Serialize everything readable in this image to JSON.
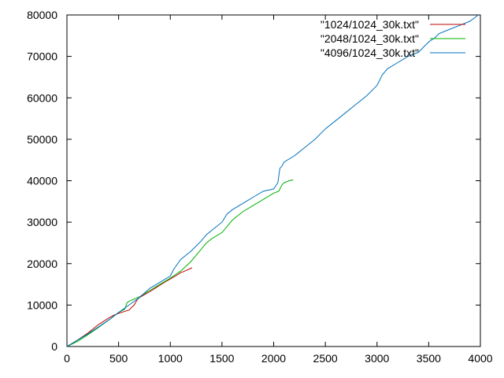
{
  "chart_data": {
    "type": "line",
    "title": "",
    "xlabel": "",
    "ylabel": "",
    "xlim": [
      0,
      4000
    ],
    "ylim": [
      0,
      80000
    ],
    "xticks": [
      0,
      500,
      1000,
      1500,
      2000,
      2500,
      3000,
      3500,
      4000
    ],
    "yticks": [
      0,
      10000,
      20000,
      30000,
      40000,
      50000,
      60000,
      70000,
      80000
    ],
    "grid": false,
    "legend_position": "top-right",
    "series": [
      {
        "name": "\"1024/1024_30k.txt\"",
        "color": "#c00000",
        "x": [
          0,
          100,
          200,
          300,
          350,
          400,
          450,
          500,
          550,
          600,
          620,
          650,
          680,
          700,
          750,
          800,
          850,
          900,
          950,
          1000,
          1050,
          1100,
          1150,
          1210
        ],
        "y": [
          0,
          1500,
          3200,
          5200,
          6000,
          6800,
          7500,
          8000,
          8400,
          8800,
          9300,
          10000,
          11300,
          11800,
          12500,
          13200,
          14000,
          14800,
          15600,
          16300,
          17000,
          17800,
          18300,
          19000
        ]
      },
      {
        "name": "\"2048/1024_30k.txt\"",
        "color": "#00b000",
        "x": [
          0,
          100,
          200,
          300,
          400,
          500,
          560,
          580,
          600,
          700,
          800,
          900,
          1000,
          1100,
          1200,
          1300,
          1350,
          1400,
          1500,
          1550,
          1600,
          1700,
          1800,
          1900,
          2000,
          2050,
          2080,
          2100,
          2150,
          2190
        ],
        "y": [
          0,
          1200,
          2800,
          4500,
          6300,
          8200,
          9000,
          10500,
          10900,
          12000,
          13500,
          15000,
          16500,
          18200,
          20500,
          23500,
          25000,
          26000,
          27500,
          29000,
          30500,
          32500,
          34000,
          35500,
          37000,
          37500,
          39000,
          39500,
          40000,
          40200
        ]
      },
      {
        "name": "\"4096/1024_30k.txt\"",
        "color": "#0072bd",
        "x": [
          0,
          200,
          400,
          500,
          600,
          700,
          800,
          900,
          1000,
          1030,
          1100,
          1200,
          1300,
          1350,
          1400,
          1500,
          1550,
          1600,
          1700,
          1800,
          1900,
          2000,
          2040,
          2060,
          2080,
          2100,
          2200,
          2300,
          2400,
          2500,
          2600,
          2700,
          2800,
          2900,
          3000,
          3050,
          3100,
          3200,
          3300,
          3400,
          3500,
          3560,
          3600,
          3700,
          3800,
          3900,
          3980
        ],
        "y": [
          0,
          3000,
          6300,
          8200,
          10000,
          11800,
          14000,
          15500,
          17000,
          18500,
          21000,
          23000,
          25500,
          27000,
          28000,
          30000,
          32000,
          33000,
          34500,
          36000,
          37500,
          38000,
          39500,
          43000,
          43500,
          44500,
          46000,
          48000,
          50000,
          52500,
          54500,
          56500,
          58500,
          60500,
          63000,
          65500,
          67000,
          68500,
          70000,
          71000,
          73500,
          74500,
          75500,
          76500,
          77500,
          78500,
          80000
        ]
      }
    ]
  }
}
